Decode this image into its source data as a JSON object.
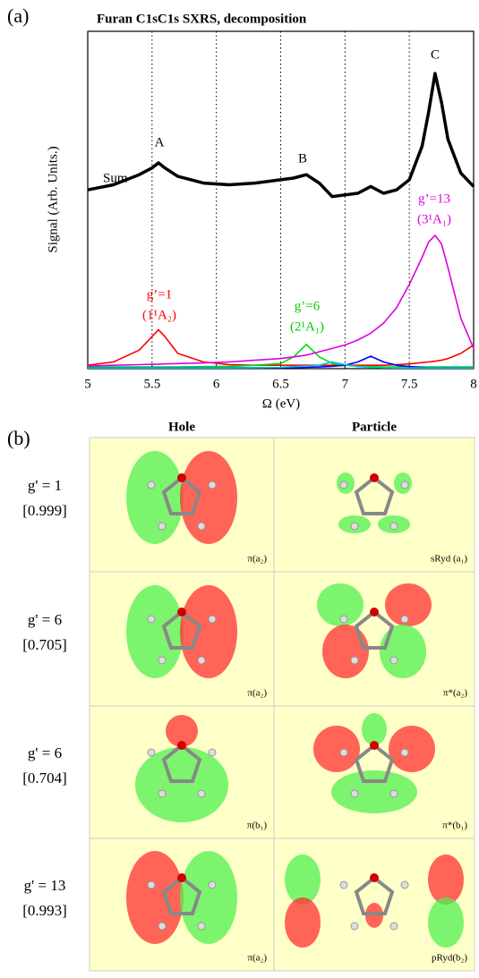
{
  "chart_data": {
    "type": "line",
    "panel_label": "(a)",
    "title": "Furan C1sC1s SXRS, decomposition",
    "xlabel": "Ω (eV)",
    "ylabel": "Signal (Arb. Units.)",
    "x": [
      5,
      5.2,
      5.4,
      5.5,
      5.55,
      5.6,
      5.7,
      5.9,
      6.1,
      6.3,
      6.5,
      6.6,
      6.7,
      6.8,
      6.9,
      7,
      7.1,
      7.2,
      7.3,
      7.4,
      7.5,
      7.6,
      7.65,
      7.7,
      7.75,
      7.8,
      7.9,
      8
    ],
    "series": [
      {
        "name": "Sum",
        "color": "#000000",
        "values": [
          5.3,
          5.45,
          5.75,
          5.95,
          6.1,
          5.95,
          5.7,
          5.5,
          5.45,
          5.5,
          5.6,
          5.65,
          5.75,
          5.5,
          5.1,
          5.15,
          5.2,
          5.4,
          5.2,
          5.3,
          5.6,
          6.6,
          7.6,
          8.75,
          7.9,
          6.8,
          5.8,
          5.4
        ]
      },
      {
        "name": "g’=1",
        "color": "#ff0000",
        "values": [
          0.1,
          0.2,
          0.55,
          0.95,
          1.15,
          0.95,
          0.45,
          0.2,
          0.12,
          0.1,
          0.1,
          0.1,
          0.1,
          0.1,
          0.1,
          0.1,
          0.1,
          0.1,
          0.1,
          0.12,
          0.14,
          0.18,
          0.2,
          0.22,
          0.25,
          0.3,
          0.45,
          0.7
        ]
      },
      {
        "name": "g’=6",
        "color": "#00dd00",
        "values": [
          0.05,
          0.05,
          0.05,
          0.05,
          0.05,
          0.05,
          0.05,
          0.06,
          0.07,
          0.1,
          0.15,
          0.35,
          0.72,
          0.35,
          0.15,
          0.1,
          0.07,
          0.06,
          0.05,
          0.05,
          0.05,
          0.05,
          0.05,
          0.05,
          0.05,
          0.05,
          0.05,
          0.05
        ]
      },
      {
        "name": "g’=13",
        "color": "#dd00dd",
        "values": [
          0.08,
          0.1,
          0.12,
          0.13,
          0.13,
          0.14,
          0.15,
          0.17,
          0.2,
          0.25,
          0.3,
          0.35,
          0.4,
          0.5,
          0.6,
          0.7,
          0.85,
          1.05,
          1.35,
          1.8,
          2.5,
          3.3,
          3.75,
          3.95,
          3.7,
          3.0,
          1.5,
          0.6
        ]
      },
      {
        "color": "#0000ff",
        "values": [
          0.03,
          0.03,
          0.03,
          0.03,
          0.03,
          0.03,
          0.03,
          0.03,
          0.03,
          0.03,
          0.03,
          0.03,
          0.04,
          0.05,
          0.07,
          0.1,
          0.2,
          0.37,
          0.2,
          0.1,
          0.06,
          0.04,
          0.03,
          0.03,
          0.03,
          0.03,
          0.03,
          0.03
        ]
      },
      {
        "color": "#00cccc",
        "values": [
          0.02,
          0.02,
          0.02,
          0.02,
          0.02,
          0.02,
          0.02,
          0.02,
          0.02,
          0.03,
          0.04,
          0.06,
          0.08,
          0.1,
          0.2,
          0.12,
          0.06,
          0.04,
          0.03,
          0.02,
          0.02,
          0.02,
          0.02,
          0.02,
          0.02,
          0.02,
          0.02,
          0.02
        ]
      }
    ],
    "annotations": [
      "A",
      "B",
      "C",
      "Sum",
      "g’=1",
      "(1¹A₂)",
      "g’=6",
      "(2¹A₁)",
      "g’=13",
      "(3¹A₁)"
    ],
    "xlim": [
      5,
      8
    ],
    "xticks": [
      5,
      5.5,
      6,
      6.5,
      7,
      7.5,
      8
    ],
    "ylim": [
      0,
      10
    ],
    "grid": true
  },
  "panel_b": {
    "label": "(b)",
    "columns": [
      "Hole",
      "Particle"
    ],
    "rows": [
      {
        "state": "g' = 1",
        "weight": "[0.999]",
        "hole": "π(a₂)",
        "particle": "sRyd (a₁)"
      },
      {
        "state": "g' = 6",
        "weight": "[0.705]",
        "hole": "π(a₂)",
        "particle": "π*(a₂)"
      },
      {
        "state": "g' = 6",
        "weight": "[0.704]",
        "hole": "π(b₁)",
        "particle": "π*(b₁)"
      },
      {
        "state": "g' = 13",
        "weight": "[0.993]",
        "hole": "π(a₂)",
        "particle": "pRyd(b₂)"
      }
    ]
  }
}
